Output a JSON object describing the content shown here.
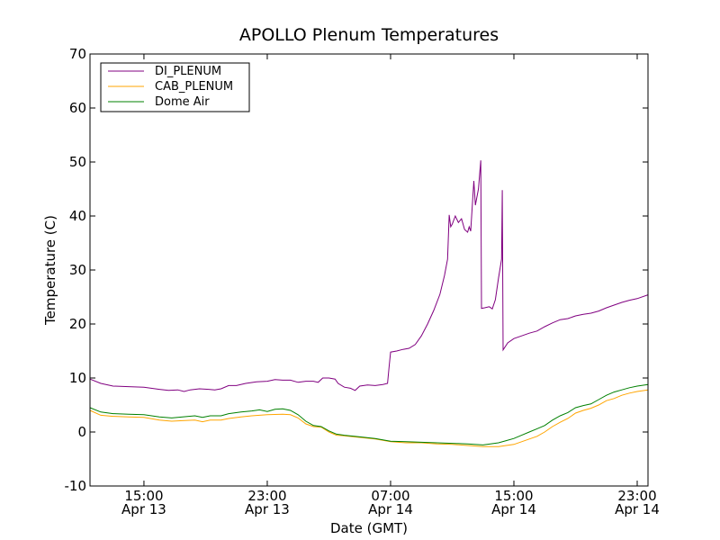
{
  "chart_data": {
    "type": "line",
    "title": "APOLLO Plenum Temperatures",
    "xlabel": "Date (GMT)",
    "ylabel": "Temperature (C)",
    "ylim": [
      -10,
      70
    ],
    "xlim_hours": [
      11.5,
      47.7
    ],
    "grid": false,
    "legend_position": "top-left",
    "y_ticks": [
      {
        "value": -10,
        "label": "-10"
      },
      {
        "value": 0,
        "label": "0"
      },
      {
        "value": 10,
        "label": "10"
      },
      {
        "value": 20,
        "label": "20"
      },
      {
        "value": 30,
        "label": "30"
      },
      {
        "value": 40,
        "label": "40"
      },
      {
        "value": 50,
        "label": "50"
      },
      {
        "value": 60,
        "label": "60"
      },
      {
        "value": 70,
        "label": "70"
      }
    ],
    "x_ticks": [
      {
        "hour": 15,
        "label": "15:00",
        "sublabel": "Apr 13"
      },
      {
        "hour": 23,
        "label": "23:00",
        "sublabel": "Apr 13"
      },
      {
        "hour": 31,
        "label": "07:00",
        "sublabel": "Apr 14"
      },
      {
        "hour": 39,
        "label": "15:00",
        "sublabel": "Apr 14"
      },
      {
        "hour": 47,
        "label": "23:00",
        "sublabel": "Apr 14"
      }
    ],
    "series": [
      {
        "name": "DI_PLENUM",
        "color": "#800080",
        "points": [
          [
            11.5,
            9.8
          ],
          [
            12.2,
            9.0
          ],
          [
            13.0,
            8.5
          ],
          [
            14.0,
            8.4
          ],
          [
            15.0,
            8.3
          ],
          [
            16.0,
            7.9
          ],
          [
            16.6,
            7.7
          ],
          [
            17.2,
            7.8
          ],
          [
            17.6,
            7.5
          ],
          [
            18.0,
            7.8
          ],
          [
            18.6,
            8.0
          ],
          [
            19.2,
            7.9
          ],
          [
            19.6,
            7.8
          ],
          [
            20.0,
            8.0
          ],
          [
            20.5,
            8.6
          ],
          [
            21.0,
            8.6
          ],
          [
            21.6,
            9.0
          ],
          [
            22.3,
            9.3
          ],
          [
            23.0,
            9.4
          ],
          [
            23.5,
            9.7
          ],
          [
            24.0,
            9.6
          ],
          [
            24.5,
            9.6
          ],
          [
            25.0,
            9.2
          ],
          [
            25.5,
            9.4
          ],
          [
            26.0,
            9.4
          ],
          [
            26.3,
            9.2
          ],
          [
            26.6,
            10.0
          ],
          [
            27.0,
            10.0
          ],
          [
            27.4,
            9.8
          ],
          [
            27.6,
            9.0
          ],
          [
            28.0,
            8.3
          ],
          [
            28.4,
            8.1
          ],
          [
            28.7,
            7.7
          ],
          [
            29.0,
            8.5
          ],
          [
            29.5,
            8.7
          ],
          [
            30.0,
            8.6
          ],
          [
            30.5,
            8.8
          ],
          [
            30.8,
            9.0
          ],
          [
            30.9,
            12.0
          ],
          [
            31.0,
            14.8
          ],
          [
            31.4,
            15.0
          ],
          [
            31.8,
            15.3
          ],
          [
            32.2,
            15.5
          ],
          [
            32.6,
            16.2
          ],
          [
            33.0,
            17.8
          ],
          [
            33.4,
            20.0
          ],
          [
            33.8,
            22.5
          ],
          [
            34.2,
            25.5
          ],
          [
            34.5,
            29.0
          ],
          [
            34.7,
            32.0
          ],
          [
            34.8,
            40.2
          ],
          [
            34.9,
            38.0
          ],
          [
            35.0,
            38.5
          ],
          [
            35.2,
            40.0
          ],
          [
            35.4,
            38.8
          ],
          [
            35.6,
            39.5
          ],
          [
            35.8,
            37.5
          ],
          [
            36.0,
            37.0
          ],
          [
            36.1,
            38.0
          ],
          [
            36.2,
            37.2
          ],
          [
            36.4,
            46.5
          ],
          [
            36.5,
            42.0
          ],
          [
            36.7,
            45.0
          ],
          [
            36.85,
            50.3
          ],
          [
            36.9,
            22.9
          ],
          [
            37.1,
            23.0
          ],
          [
            37.4,
            23.2
          ],
          [
            37.6,
            22.8
          ],
          [
            37.8,
            24.5
          ],
          [
            38.0,
            28.5
          ],
          [
            38.2,
            32.0
          ],
          [
            38.25,
            44.8
          ],
          [
            38.3,
            15.2
          ],
          [
            38.6,
            16.5
          ],
          [
            39.0,
            17.3
          ],
          [
            39.5,
            17.8
          ],
          [
            40.0,
            18.3
          ],
          [
            40.5,
            18.7
          ],
          [
            41.0,
            19.5
          ],
          [
            41.5,
            20.2
          ],
          [
            42.0,
            20.8
          ],
          [
            42.5,
            21.0
          ],
          [
            43.0,
            21.5
          ],
          [
            43.5,
            21.8
          ],
          [
            44.0,
            22.0
          ],
          [
            44.5,
            22.4
          ],
          [
            45.0,
            23.0
          ],
          [
            45.5,
            23.5
          ],
          [
            46.0,
            24.0
          ],
          [
            46.5,
            24.4
          ],
          [
            47.0,
            24.7
          ],
          [
            47.7,
            25.4
          ]
        ]
      },
      {
        "name": "CAB_PLENUM",
        "color": "#FFA500",
        "points": [
          [
            11.5,
            4.0
          ],
          [
            12.2,
            3.1
          ],
          [
            13.0,
            2.9
          ],
          [
            14.0,
            2.8
          ],
          [
            15.0,
            2.7
          ],
          [
            16.0,
            2.2
          ],
          [
            16.8,
            2.0
          ],
          [
            17.5,
            2.1
          ],
          [
            18.3,
            2.2
          ],
          [
            18.8,
            1.9
          ],
          [
            19.3,
            2.2
          ],
          [
            20.0,
            2.2
          ],
          [
            20.5,
            2.5
          ],
          [
            21.3,
            2.8
          ],
          [
            22.0,
            3.0
          ],
          [
            23.0,
            3.2
          ],
          [
            24.0,
            3.3
          ],
          [
            24.5,
            3.2
          ],
          [
            25.0,
            2.6
          ],
          [
            25.5,
            1.5
          ],
          [
            26.0,
            1.0
          ],
          [
            26.5,
            0.9
          ],
          [
            27.0,
            0.0
          ],
          [
            27.5,
            -0.6
          ],
          [
            28.0,
            -0.7
          ],
          [
            29.0,
            -1.0
          ],
          [
            30.0,
            -1.3
          ],
          [
            31.0,
            -1.8
          ],
          [
            32.0,
            -2.0
          ],
          [
            33.0,
            -2.0
          ],
          [
            34.0,
            -2.2
          ],
          [
            35.0,
            -2.3
          ],
          [
            36.0,
            -2.5
          ],
          [
            37.0,
            -2.7
          ],
          [
            38.0,
            -2.7
          ],
          [
            38.5,
            -2.5
          ],
          [
            39.0,
            -2.3
          ],
          [
            39.5,
            -1.8
          ],
          [
            40.0,
            -1.3
          ],
          [
            40.5,
            -0.8
          ],
          [
            41.0,
            0.0
          ],
          [
            41.5,
            1.0
          ],
          [
            42.0,
            1.8
          ],
          [
            42.5,
            2.5
          ],
          [
            43.0,
            3.5
          ],
          [
            43.5,
            4.0
          ],
          [
            44.0,
            4.4
          ],
          [
            44.5,
            5.0
          ],
          [
            45.0,
            5.8
          ],
          [
            45.5,
            6.2
          ],
          [
            46.0,
            6.8
          ],
          [
            46.5,
            7.2
          ],
          [
            47.0,
            7.5
          ],
          [
            47.7,
            7.8
          ]
        ]
      },
      {
        "name": "Dome Air",
        "color": "#008000",
        "points": [
          [
            11.5,
            4.5
          ],
          [
            12.2,
            3.7
          ],
          [
            13.0,
            3.4
          ],
          [
            14.0,
            3.3
          ],
          [
            15.0,
            3.2
          ],
          [
            16.0,
            2.8
          ],
          [
            16.8,
            2.6
          ],
          [
            17.5,
            2.8
          ],
          [
            18.3,
            3.0
          ],
          [
            18.8,
            2.7
          ],
          [
            19.3,
            3.0
          ],
          [
            20.0,
            3.0
          ],
          [
            20.5,
            3.4
          ],
          [
            21.3,
            3.7
          ],
          [
            22.0,
            3.9
          ],
          [
            22.5,
            4.1
          ],
          [
            23.0,
            3.8
          ],
          [
            23.5,
            4.2
          ],
          [
            24.0,
            4.3
          ],
          [
            24.5,
            4.0
          ],
          [
            25.0,
            3.2
          ],
          [
            25.5,
            2.0
          ],
          [
            26.0,
            1.2
          ],
          [
            26.5,
            1.0
          ],
          [
            27.0,
            0.2
          ],
          [
            27.5,
            -0.4
          ],
          [
            28.0,
            -0.6
          ],
          [
            29.0,
            -0.9
          ],
          [
            30.0,
            -1.2
          ],
          [
            31.0,
            -1.7
          ],
          [
            32.0,
            -1.8
          ],
          [
            33.0,
            -1.9
          ],
          [
            34.0,
            -2.0
          ],
          [
            35.0,
            -2.1
          ],
          [
            36.0,
            -2.2
          ],
          [
            37.0,
            -2.4
          ],
          [
            38.0,
            -2.0
          ],
          [
            38.5,
            -1.6
          ],
          [
            39.0,
            -1.2
          ],
          [
            39.5,
            -0.6
          ],
          [
            40.0,
            0.0
          ],
          [
            40.5,
            0.6
          ],
          [
            41.0,
            1.2
          ],
          [
            41.5,
            2.2
          ],
          [
            42.0,
            3.0
          ],
          [
            42.5,
            3.6
          ],
          [
            43.0,
            4.5
          ],
          [
            43.5,
            4.9
          ],
          [
            44.0,
            5.2
          ],
          [
            44.5,
            6.0
          ],
          [
            45.0,
            6.8
          ],
          [
            45.5,
            7.4
          ],
          [
            46.0,
            7.8
          ],
          [
            46.5,
            8.2
          ],
          [
            47.0,
            8.5
          ],
          [
            47.7,
            8.8
          ]
        ]
      }
    ]
  }
}
